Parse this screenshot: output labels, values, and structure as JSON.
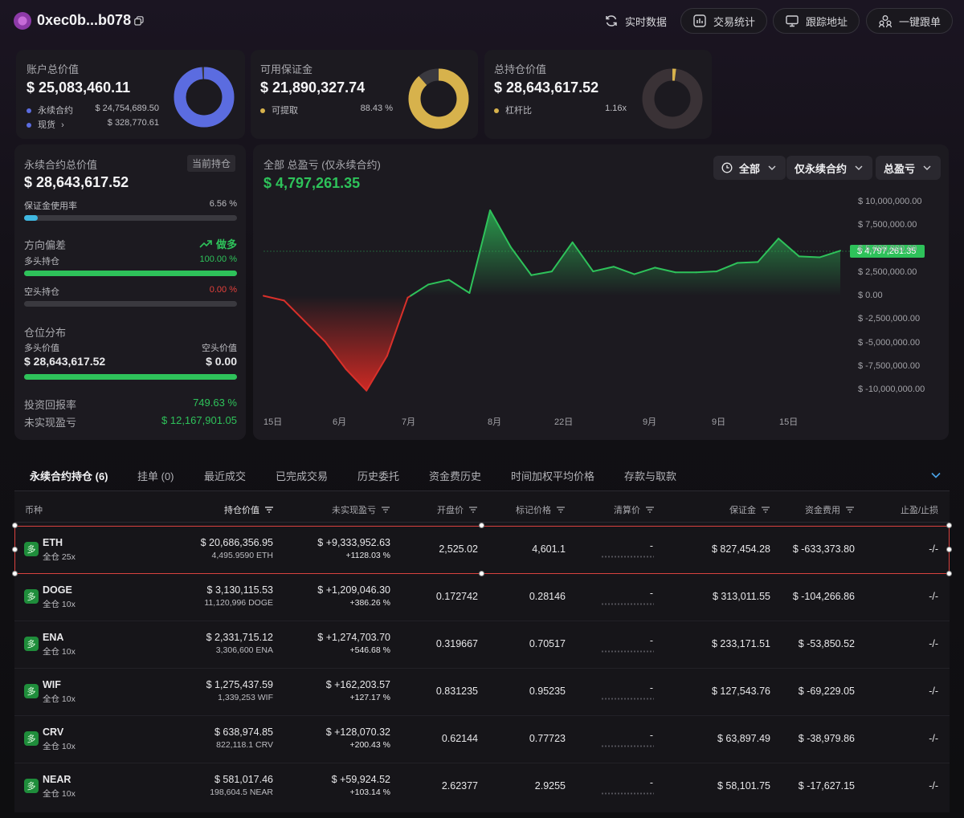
{
  "header": {
    "address": "0xec0b...b078",
    "buttons": [
      {
        "label": "实时数据"
      },
      {
        "label": "交易统计"
      },
      {
        "label": "跟踪地址"
      },
      {
        "label": "一键跟单"
      }
    ]
  },
  "summary": {
    "account": {
      "title": "账户总价值",
      "value": "$ 25,083,460.11",
      "rows": [
        {
          "label": "永续合约",
          "value": "$ 24,754,689.50",
          "color": "#5b6ce0"
        },
        {
          "label": "现货",
          "value": "$ 328,770.61",
          "color": "#5b6ce0"
        }
      ],
      "donut_fraction": 0.987,
      "donut_color": "#5b6ce0"
    },
    "margin": {
      "title": "可用保证金",
      "value": "$ 21,890,327.74",
      "row_label": "可提取",
      "row_value": "88.43 %",
      "dot_color": "#d7b24c",
      "donut_fraction": 0.8843,
      "donut_color": "#d7b24c"
    },
    "holdings": {
      "title": "总持仓价值",
      "value": "$ 28,643,617.52",
      "row_label": "杠杆比",
      "row_value": "1.16x",
      "dot_color": "#d7b24c",
      "donut_fraction": 0.02,
      "donut_color": "#d7b24c"
    }
  },
  "perp": {
    "title": "永续合约总价值",
    "tag": "当前持仓",
    "value": "$ 28,643,617.52",
    "margin_usage_label": "保证金使用率",
    "margin_usage_value": "6.56 %",
    "margin_usage_fraction": 0.0656,
    "bias_label": "方向偏差",
    "bias_value": "做多",
    "long_label": "多头持仓",
    "long_value": "100.00 %",
    "long_fraction": 1.0,
    "short_label": "空头持仓",
    "short_value": "0.00 %",
    "short_fraction": 0.0,
    "dist_label": "仓位分布",
    "long_val_label": "多头价值",
    "short_val_label": "空头价值",
    "long_val": "$ 28,643,617.52",
    "short_val": "$ 0.00",
    "roi_label": "投资回报率",
    "roi_value": "749.63 %",
    "upnl_label": "未实现盈亏",
    "upnl_value": "$ 12,167,901.05"
  },
  "pnl_chart": {
    "title": "全部 总盈亏 (仅永续合约)",
    "value": "$ 4,797,261.35",
    "filters": [
      "全部",
      "仅永续合约",
      "总盈亏"
    ]
  },
  "chart_data": {
    "type": "area",
    "title": "全部 总盈亏 (仅永续合约)",
    "y_ticks": [
      "$ 10,000,000.00",
      "$ 7,500,000.00",
      "$ 5,000,000.00",
      "$ 2,500,000.00",
      "$ 0.00",
      "$ -2,500,000.00",
      "$ -5,000,000.00",
      "$ -7,500,000.00",
      "$ -10,000,000.00"
    ],
    "x_ticks": [
      "15日",
      "6月",
      "7月",
      "8月",
      "22日",
      "9月",
      "9日",
      "15日"
    ],
    "ylim": [
      -10000000,
      10000000
    ],
    "current_value": 4797261.35,
    "current_label": "$ 4,797,261.35",
    "series": [
      {
        "values": [
          0,
          -500000,
          -2700000,
          -4900000,
          -7800000,
          -10100000,
          -6400000,
          -200000,
          1200000,
          1700000,
          300000,
          9100000,
          5200000,
          2200000,
          2600000,
          5700000,
          2600000,
          3100000,
          2300000,
          3000000,
          2500000,
          2500000,
          2600000,
          3500000,
          3600000,
          6100000,
          4200000,
          4100000,
          4800000
        ],
        "color_positive": "#2ec25a",
        "color_negative": "#d52a24"
      }
    ]
  },
  "tabs": [
    {
      "label": "永续合约持仓 (6)",
      "active": true
    },
    {
      "label": "挂单 (0)"
    },
    {
      "label": "最近成交"
    },
    {
      "label": "已完成交易"
    },
    {
      "label": "历史委托"
    },
    {
      "label": "资金费历史"
    },
    {
      "label": "时间加权平均价格"
    },
    {
      "label": "存款与取款"
    }
  ],
  "table": {
    "headers": [
      "币种",
      "持仓价值",
      "未实现盈亏",
      "开盘价",
      "标记价格",
      "清算价",
      "保证金",
      "资金费用",
      "止盈/止损"
    ],
    "rows": [
      {
        "side": "多",
        "coin": "ETH",
        "mode": "全仓 25x",
        "value": "$ 20,686,356.95",
        "size": "4,495.9590 ETH",
        "upnl": "$ +9,333,952.63",
        "upnl_pct": "+1128.03 %",
        "entry": "2,525.02",
        "mark": "4,601.1",
        "liq": "-",
        "margin": "$ 827,454.28",
        "funding": "$ -633,373.80",
        "tpsl": "-/-"
      },
      {
        "side": "多",
        "coin": "DOGE",
        "mode": "全仓 10x",
        "value": "$ 3,130,115.53",
        "size": "11,120,996 DOGE",
        "upnl": "$ +1,209,046.30",
        "upnl_pct": "+386.26 %",
        "entry": "0.172742",
        "mark": "0.28146",
        "liq": "-",
        "margin": "$ 313,011.55",
        "funding": "$ -104,266.86",
        "tpsl": "-/-"
      },
      {
        "side": "多",
        "coin": "ENA",
        "mode": "全仓 10x",
        "value": "$ 2,331,715.12",
        "size": "3,306,600 ENA",
        "upnl": "$ +1,274,703.70",
        "upnl_pct": "+546.68 %",
        "entry": "0.319667",
        "mark": "0.70517",
        "liq": "-",
        "margin": "$ 233,171.51",
        "funding": "$ -53,850.52",
        "tpsl": "-/-"
      },
      {
        "side": "多",
        "coin": "WIF",
        "mode": "全仓 10x",
        "value": "$ 1,275,437.59",
        "size": "1,339,253 WIF",
        "upnl": "$ +162,203.57",
        "upnl_pct": "+127.17 %",
        "entry": "0.831235",
        "mark": "0.95235",
        "liq": "-",
        "margin": "$ 127,543.76",
        "funding": "$ -69,229.05",
        "tpsl": "-/-"
      },
      {
        "side": "多",
        "coin": "CRV",
        "mode": "全仓 10x",
        "value": "$ 638,974.85",
        "size": "822,118.1 CRV",
        "upnl": "$ +128,070.32",
        "upnl_pct": "+200.43 %",
        "entry": "0.62144",
        "mark": "0.77723",
        "liq": "-",
        "margin": "$ 63,897.49",
        "funding": "$ -38,979.86",
        "tpsl": "-/-"
      },
      {
        "side": "多",
        "coin": "NEAR",
        "mode": "全仓 10x",
        "value": "$ 581,017.46",
        "size": "198,604.5 NEAR",
        "upnl": "$ +59,924.52",
        "upnl_pct": "+103.14 %",
        "entry": "2.62377",
        "mark": "2.9255",
        "liq": "-",
        "margin": "$ 58,101.75",
        "funding": "$ -17,627.15",
        "tpsl": "-/-"
      }
    ]
  }
}
